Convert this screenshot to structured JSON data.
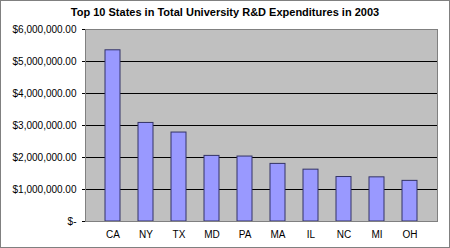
{
  "chart_data": {
    "type": "bar",
    "title": "Top 10 States in Total University R&D Expenditures in 2003",
    "categories": [
      "CA",
      "NY",
      "TX",
      "MD",
      "PA",
      "MA",
      "IL",
      "NC",
      "MI",
      "OH"
    ],
    "values": [
      5350000,
      3080000,
      2780000,
      2050000,
      2030000,
      1800000,
      1620000,
      1390000,
      1380000,
      1270000
    ],
    "color": "#9999ff",
    "ylim": [
      0,
      6000000
    ],
    "yticks": [
      {
        "value": 0,
        "label": "$-"
      },
      {
        "value": 1000000,
        "label": "$1,000,000.00"
      },
      {
        "value": 2000000,
        "label": "$2,000,000.00"
      },
      {
        "value": 3000000,
        "label": "$3,000,000.00"
      },
      {
        "value": 4000000,
        "label": "$4,000,000.00"
      },
      {
        "value": 5000000,
        "label": "$5,000,000.00"
      },
      {
        "value": 6000000,
        "label": "$6,000,000.00"
      }
    ],
    "grid": true
  }
}
